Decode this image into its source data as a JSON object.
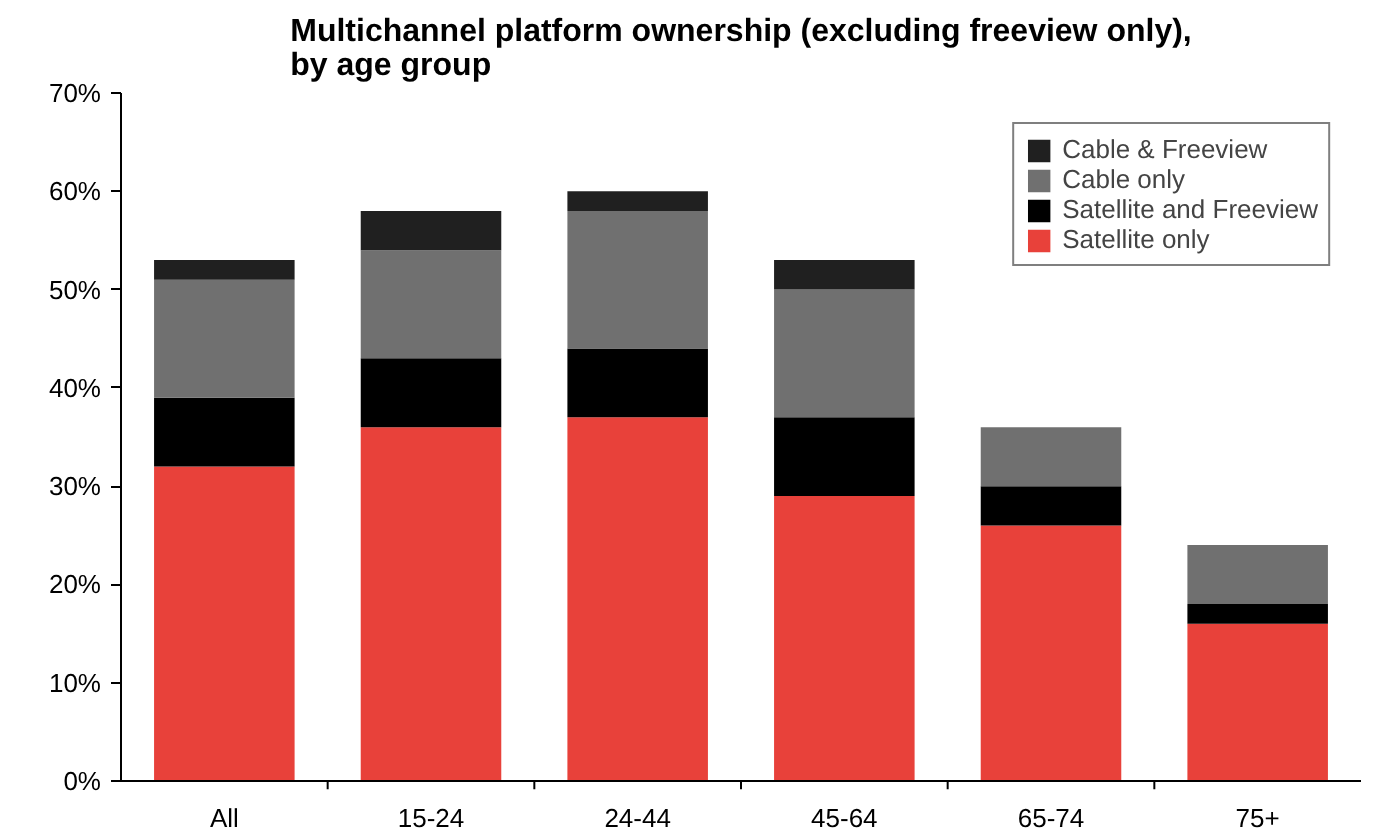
{
  "chart_data": {
    "type": "bar",
    "title": "Multichannel platform ownership (excluding freeview only),\nby age group",
    "categories": [
      "All",
      "15-24",
      "24-44",
      "45-64",
      "65-74",
      "75+"
    ],
    "stacked": true,
    "ylim": [
      0,
      70
    ],
    "yticks": [
      {
        "value": 0,
        "label": "0%"
      },
      {
        "value": 10,
        "label": "10%"
      },
      {
        "value": 20,
        "label": "20%"
      },
      {
        "value": 30,
        "label": "30%"
      },
      {
        "value": 40,
        "label": "40%"
      },
      {
        "value": 50,
        "label": "50%"
      },
      {
        "value": 60,
        "label": "60%"
      },
      {
        "value": 70,
        "label": "70%"
      }
    ],
    "grid": false,
    "legend": "top right",
    "series": [
      {
        "name": "Satellite only",
        "color": "#e8413a",
        "values": [
          32,
          36,
          37,
          29,
          26,
          16
        ]
      },
      {
        "name": "Satellite and Freeview",
        "color": "#000000",
        "values": [
          7,
          7,
          7,
          8,
          4,
          2
        ]
      },
      {
        "name": "Cable only",
        "color": "#707070",
        "values": [
          12,
          11,
          14,
          13,
          6,
          6
        ]
      },
      {
        "name": "Cable & Freeview",
        "color": "#202020",
        "values": [
          2,
          4,
          2,
          3,
          0,
          0
        ]
      }
    ]
  }
}
